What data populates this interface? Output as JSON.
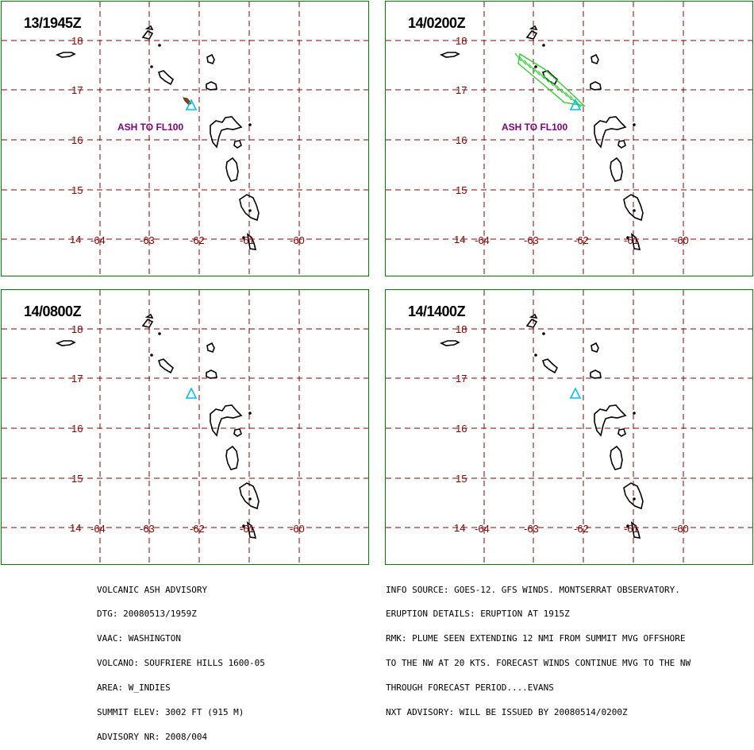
{
  "map": {
    "lat_ticks": [
      "18",
      "17",
      "16",
      "15",
      "14"
    ],
    "lon_ticks": [
      "-64",
      "-63",
      "-62",
      "-61",
      "-60"
    ],
    "colors": {
      "border": "#008000",
      "grid": "#8b0000",
      "coast": "#000000",
      "volcano": "#00bfff",
      "plume": "#32cd32",
      "label": "#800080"
    },
    "volcano_icon": "volcano-triangle-icon"
  },
  "panels": [
    {
      "time": "13/1945Z",
      "ash_label": "ASH TO FL100",
      "plume": "small"
    },
    {
      "time": "14/0200Z",
      "ash_label": "ASH TO FL100",
      "plume": "forecast"
    },
    {
      "time": "14/0800Z",
      "ash_label": "",
      "plume": "none"
    },
    {
      "time": "14/1400Z",
      "ash_label": "",
      "plume": "none"
    }
  ],
  "advisory": {
    "left": [
      "VOLCANIC ASH ADVISORY",
      "DTG: 20080513/1959Z",
      "VAAC: WASHINGTON",
      "VOLCANO: SOUFRIERE HILLS 1600-05",
      "AREA: W_INDIES",
      "SUMMIT ELEV: 3002 FT (915 M)",
      "ADVISORY NR: 2008/004"
    ],
    "right": [
      "INFO SOURCE: GOES-12. GFS WINDS. MONTSERRAT OBSERVATORY.",
      "ERUPTION DETAILS: ERUPTION AT 1915Z",
      "RMK: PLUME SEEN EXTENDING 12 NMI FROM SUMMIT MVG OFFSHORE",
      "TO THE NW AT 20 KTS. FORECAST WINDS CONTINUE MVG TO THE NW",
      "THROUGH FORECAST PERIOD....EVANS",
      "NXT ADVISORY: WILL BE ISSUED BY 20080514/0200Z"
    ]
  }
}
